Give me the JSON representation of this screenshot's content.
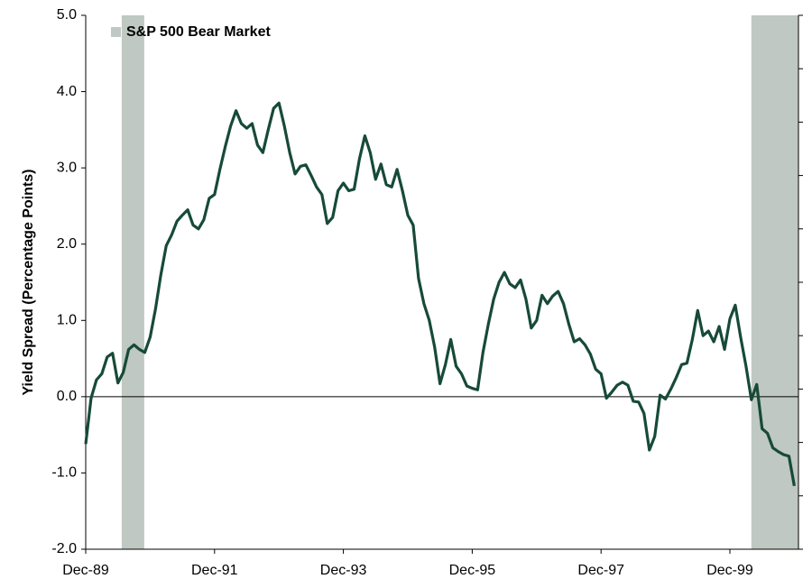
{
  "chart_data": {
    "type": "line",
    "y_label": "Yield Spread (Percentage Points)",
    "categories": [
      "Dec-89",
      null,
      null,
      null,
      null,
      null,
      null,
      null,
      null,
      null,
      null,
      null,
      null,
      null,
      null,
      null,
      null,
      null,
      null,
      null,
      null,
      null,
      null,
      null,
      "Dec-91",
      null,
      null,
      null,
      null,
      null,
      null,
      null,
      null,
      null,
      null,
      null,
      null,
      null,
      null,
      null,
      null,
      null,
      null,
      null,
      null,
      null,
      null,
      null,
      "Dec-93",
      null,
      null,
      null,
      null,
      null,
      null,
      null,
      null,
      null,
      null,
      null,
      null,
      null,
      null,
      null,
      null,
      null,
      null,
      null,
      null,
      null,
      null,
      null,
      "Dec-95",
      null,
      null,
      null,
      null,
      null,
      null,
      null,
      null,
      null,
      null,
      null,
      null,
      null,
      null,
      null,
      null,
      null,
      null,
      null,
      null,
      null,
      null,
      null,
      "Dec-97",
      null,
      null,
      null,
      null,
      null,
      null,
      null,
      null,
      null,
      null,
      null,
      null,
      null,
      null,
      null,
      null,
      null,
      null,
      null,
      null,
      null,
      null,
      null,
      "Dec-99",
      null,
      null,
      null,
      null,
      null,
      null,
      null,
      null,
      null,
      null,
      null,
      null
    ],
    "values": [
      -0.62,
      -0.02,
      0.22,
      0.3,
      0.52,
      0.57,
      0.18,
      0.32,
      0.62,
      0.68,
      0.62,
      0.58,
      0.78,
      1.15,
      1.6,
      1.98,
      2.12,
      2.3,
      2.38,
      2.45,
      2.25,
      2.2,
      2.32,
      2.6,
      2.65,
      2.98,
      3.28,
      3.55,
      3.75,
      3.58,
      3.52,
      3.58,
      3.3,
      3.2,
      3.5,
      3.78,
      3.85,
      3.55,
      3.2,
      2.92,
      3.02,
      3.04,
      2.9,
      2.75,
      2.65,
      2.27,
      2.35,
      2.7,
      2.8,
      2.7,
      2.72,
      3.12,
      3.42,
      3.2,
      2.85,
      3.05,
      2.78,
      2.75,
      2.98,
      2.7,
      2.38,
      2.25,
      1.55,
      1.22,
      1.0,
      0.65,
      0.17,
      0.42,
      0.75,
      0.4,
      0.3,
      0.14,
      0.11,
      0.09,
      0.58,
      0.95,
      1.28,
      1.5,
      1.63,
      1.48,
      1.43,
      1.53,
      1.28,
      0.9,
      1.0,
      1.33,
      1.22,
      1.32,
      1.38,
      1.22,
      0.95,
      0.72,
      0.76,
      0.68,
      0.56,
      0.36,
      0.3,
      -0.02,
      0.06,
      0.15,
      0.19,
      0.15,
      -0.06,
      -0.07,
      -0.22,
      -0.7,
      -0.52,
      0.02,
      -0.03,
      0.1,
      0.25,
      0.42,
      0.44,
      0.75,
      1.13,
      0.8,
      0.86,
      0.72,
      0.92,
      0.62,
      1.02,
      1.2,
      0.78,
      0.4,
      -0.04,
      0.16,
      -0.42,
      -0.48,
      -0.67,
      -0.72,
      -0.76,
      -0.78,
      -1.17
    ],
    "color": "#174a38",
    "shaded_regions": {
      "name": "S&P 500 Bear Market",
      "color": "#bfc8c2",
      "ranges": [
        [
          6.7,
          10.9
        ],
        [
          124,
          132.8
        ]
      ]
    },
    "ylim": [
      -2,
      5
    ],
    "yticks": [
      {
        "value": -2,
        "label": "-2.0"
      },
      {
        "value": -1,
        "label": "-1.0"
      },
      {
        "value": 0,
        "label": "0.0"
      },
      {
        "value": 1,
        "label": "1.0"
      },
      {
        "value": 2,
        "label": "2.0"
      },
      {
        "value": 3,
        "label": "3.0"
      },
      {
        "value": 4,
        "label": "4.0"
      },
      {
        "value": 5,
        "label": "5.0"
      }
    ]
  }
}
